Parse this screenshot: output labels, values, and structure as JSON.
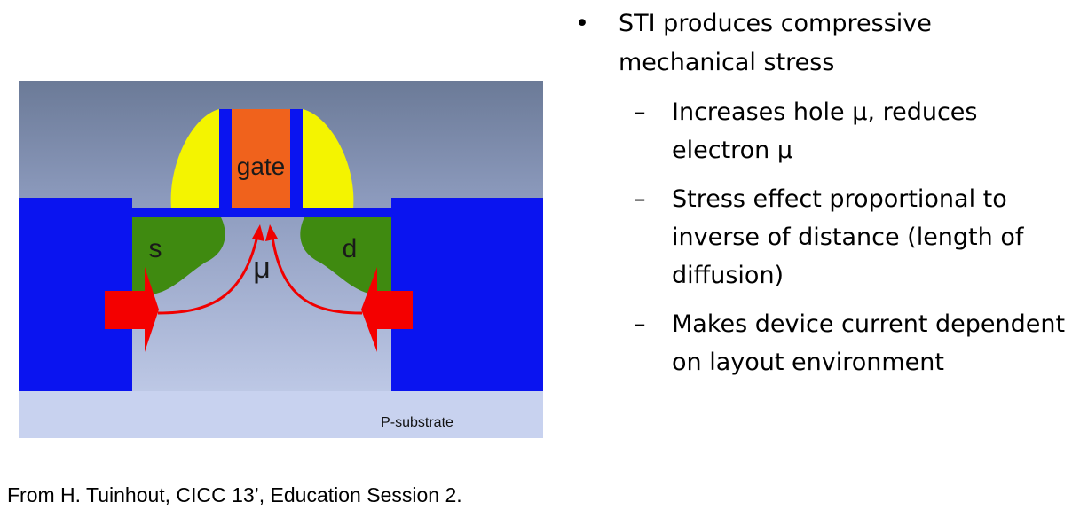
{
  "diagram": {
    "labels": {
      "gate": "gate",
      "source": "s",
      "drain": "d",
      "mobility": "μ",
      "substrate": "P-substrate"
    },
    "colors": {
      "background_top": "#6b7a97",
      "background_bottom": "#c9d3ef",
      "sti": "#0a14f0",
      "diffusion": "#3f8a10",
      "gate": "#f0621c",
      "spacer": "#f4f400",
      "stress_arrow": "#f40000",
      "current_arrow": "#f00000"
    }
  },
  "bullets": {
    "main": "STI produces compressive mechanical stress",
    "subs": [
      "Increases hole μ, reduces electron μ",
      "Stress effect proportional to inverse of distance (length of diffusion)",
      "Makes device current dependent on layout environment"
    ]
  },
  "citation": "From H. Tuinhout, CICC 13’, Education Session 2."
}
